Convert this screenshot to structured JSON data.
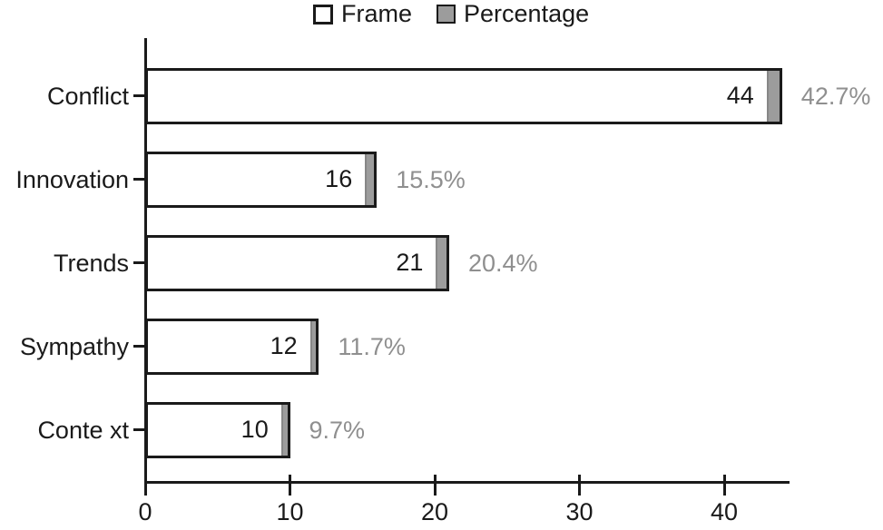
{
  "chart_data": {
    "type": "bar",
    "orientation": "horizontal",
    "title": "",
    "xlabel": "",
    "ylabel": "",
    "categories": [
      "Conflict",
      "Innovation",
      "Trends",
      "Sympathy",
      "Conte xt"
    ],
    "series": [
      {
        "name": "Frame",
        "values": [
          44,
          16,
          21,
          12,
          10
        ]
      },
      {
        "name": "Percentage",
        "values": [
          42.7,
          15.5,
          20.4,
          11.7,
          9.7
        ]
      }
    ],
    "bar_value_labels": [
      "44",
      "16",
      "21",
      "12",
      "10"
    ],
    "percentage_labels": [
      "42.7%",
      "15.5%",
      "20.4%",
      "11.7%",
      "9.7%"
    ],
    "x_ticks": [
      0,
      10,
      20,
      30,
      40
    ],
    "xlim": [
      0,
      44.5
    ],
    "grid": false,
    "legend_position": "top-center"
  },
  "colors": {
    "bar_fill": "#ffffff",
    "bar_border": "#1a1a1a",
    "percentage_fill": "#9c9c9c",
    "percentage_text": "#8f8f8f",
    "axis": "#1a1a1a",
    "text": "#1a1a1a"
  }
}
